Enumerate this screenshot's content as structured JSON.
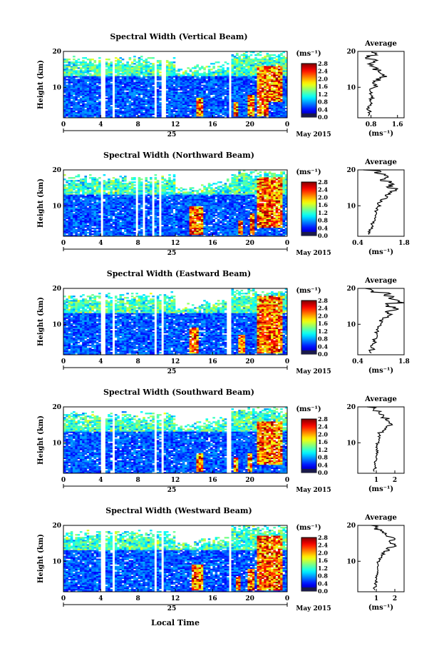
{
  "figure": {
    "xlabel": "Local Time",
    "date_label": "May 2015",
    "day_label": "25",
    "height_label": "Height (km)",
    "cbar_units": "(ms⁻¹)",
    "avg_title": "Average",
    "avg_xlabel": "(ms⁻¹)"
  },
  "chart_data": [
    {
      "type": "heatmap",
      "title": "Spectral Width (Vertical Beam)",
      "xlabel": "",
      "ylabel": "Height (km)",
      "xlim": [
        0,
        24
      ],
      "ylim": [
        1.5,
        20
      ],
      "xticks": [
        "0",
        "4",
        "8",
        "12",
        "16",
        "20",
        "0"
      ],
      "yticks": [
        "10",
        "20"
      ],
      "colorbar": {
        "range": [
          0,
          2.8
        ],
        "ticks": [
          "0.0",
          "0.4",
          "0.8",
          "1.2",
          "1.6",
          "2.0",
          "2.4",
          "2.8"
        ]
      },
      "data_gaps_hours": [
        [
          4.1,
          4.4
        ],
        [
          5.3,
          5.6
        ],
        [
          8.4,
          8.6
        ],
        [
          9.8,
          10.0
        ],
        [
          10.4,
          10.9
        ],
        [
          17.7,
          17.9
        ]
      ],
      "high_regions": [
        [
          14.3,
          15.0,
          2,
          7
        ],
        [
          18.2,
          18.8,
          2,
          6
        ],
        [
          19.7,
          20.5,
          2,
          8
        ],
        [
          20.8,
          22.0,
          2,
          16
        ],
        [
          22.0,
          23.5,
          6,
          16
        ]
      ],
      "average": {
        "xlim": [
          0.4,
          1.8
        ],
        "xticks": [
          "0.8",
          "1.6"
        ],
        "yticks": [
          "10",
          "20"
        ],
        "heights": [
          2,
          3,
          4,
          5,
          6,
          7,
          8,
          9,
          10,
          11,
          12,
          13,
          14,
          15,
          16,
          17,
          18,
          19,
          20
        ],
        "values": [
          0.7,
          0.75,
          0.72,
          0.8,
          0.78,
          0.85,
          0.8,
          0.82,
          0.95,
          0.9,
          1.05,
          1.2,
          1.1,
          0.9,
          0.8,
          0.95,
          0.7,
          0.9,
          0.75
        ]
      }
    },
    {
      "type": "heatmap",
      "title": "Spectral Width (Northward Beam)",
      "xlabel": "",
      "ylabel": "Height (km)",
      "xlim": [
        0,
        24
      ],
      "ylim": [
        1.5,
        20
      ],
      "xticks": [
        "0",
        "4",
        "8",
        "12",
        "16",
        "20",
        "0"
      ],
      "yticks": [
        "10",
        "20"
      ],
      "colorbar": {
        "range": [
          0,
          2.8
        ],
        "ticks": [
          "0.0",
          "0.4",
          "0.8",
          "1.2",
          "1.6",
          "2.0",
          "2.4",
          "2.8"
        ]
      },
      "data_gaps_hours": [
        [
          4.0,
          4.3
        ],
        [
          7.8,
          8.1
        ],
        [
          8.5,
          8.7
        ],
        [
          9.6,
          9.8
        ],
        [
          10.2,
          10.5
        ]
      ],
      "high_regions": [
        [
          13.6,
          15.0,
          2,
          10
        ],
        [
          18.7,
          19.2,
          2,
          6
        ],
        [
          20.0,
          20.4,
          2,
          8
        ],
        [
          20.8,
          23.5,
          4,
          18
        ]
      ],
      "average": {
        "xlim": [
          0.4,
          1.8
        ],
        "xticks": [
          "0.4",
          "1.8"
        ],
        "yticks": [
          "10",
          "20"
        ],
        "heights": [
          2,
          3,
          4,
          5,
          6,
          7,
          8,
          9,
          10,
          11,
          12,
          13,
          14,
          15,
          16,
          17,
          18,
          19,
          20
        ],
        "values": [
          0.75,
          0.8,
          0.82,
          0.85,
          0.9,
          0.92,
          0.95,
          1.0,
          1.05,
          1.1,
          1.2,
          1.3,
          1.5,
          1.35,
          1.4,
          1.2,
          1.3,
          1.0,
          0.5
        ]
      }
    },
    {
      "type": "heatmap",
      "title": "Spectral Width (Eastward Beam)",
      "xlabel": "",
      "ylabel": "Height (km)",
      "xlim": [
        0,
        24
      ],
      "ylim": [
        1.5,
        20
      ],
      "xticks": [
        "0",
        "4",
        "8",
        "12",
        "16",
        "20",
        "0"
      ],
      "yticks": [
        "10",
        "20"
      ],
      "colorbar": {
        "range": [
          0,
          2.8
        ],
        "ticks": [
          "0.0",
          "0.4",
          "0.8",
          "1.2",
          "1.6",
          "2.0",
          "2.4",
          "2.8"
        ]
      },
      "data_gaps_hours": [
        [
          4.1,
          4.4
        ],
        [
          5.2,
          5.5
        ],
        [
          9.8,
          10.1
        ],
        [
          10.5,
          10.8
        ],
        [
          17.6,
          17.9
        ]
      ],
      "high_regions": [
        [
          13.6,
          14.6,
          2,
          9
        ],
        [
          18.7,
          19.4,
          2,
          7
        ],
        [
          20.7,
          23.5,
          2,
          18
        ]
      ],
      "average": {
        "xlim": [
          0.4,
          1.8
        ],
        "xticks": [
          "0.4",
          "1.8"
        ],
        "yticks": [
          "10",
          "20"
        ],
        "heights": [
          2,
          3,
          4,
          5,
          6,
          7,
          8,
          9,
          10,
          11,
          12,
          13,
          14,
          15,
          16,
          17,
          18,
          19,
          20
        ],
        "values": [
          0.8,
          0.85,
          0.85,
          0.9,
          0.95,
          0.95,
          1.0,
          1.05,
          1.15,
          1.1,
          1.35,
          1.3,
          1.6,
          1.3,
          1.7,
          1.4,
          1.3,
          0.9,
          0.6
        ]
      }
    },
    {
      "type": "heatmap",
      "title": "Spectral Width (Southward Beam)",
      "xlabel": "",
      "ylabel": "Height (km)",
      "xlim": [
        0,
        24
      ],
      "ylim": [
        1.5,
        20
      ],
      "xticks": [
        "0",
        "4",
        "8",
        "12",
        "16",
        "20",
        "0"
      ],
      "yticks": [
        "10",
        "20"
      ],
      "colorbar": {
        "range": [
          0,
          2.8
        ],
        "ticks": [
          "0.0",
          "0.4",
          "0.8",
          "1.2",
          "1.6",
          "2.0",
          "2.4",
          "2.8"
        ]
      },
      "data_gaps_hours": [
        [
          4.1,
          4.4
        ],
        [
          5.3,
          5.6
        ],
        [
          9.8,
          10.0
        ],
        [
          10.5,
          10.8
        ],
        [
          17.6,
          17.9
        ]
      ],
      "high_regions": [
        [
          14.3,
          15.0,
          2,
          7
        ],
        [
          18.3,
          18.8,
          2,
          6
        ],
        [
          19.8,
          20.3,
          2,
          7
        ],
        [
          20.8,
          23.5,
          4,
          16
        ]
      ],
      "average": {
        "xlim": [
          0,
          2.5
        ],
        "xticks": [
          "1",
          "2"
        ],
        "yticks": [
          "10",
          "20"
        ],
        "heights": [
          2,
          3,
          4,
          5,
          6,
          7,
          8,
          9,
          10,
          11,
          12,
          13,
          14,
          15,
          16,
          17,
          18,
          19,
          20
        ],
        "values": [
          0.9,
          0.95,
          0.95,
          1.0,
          1.0,
          1.05,
          1.0,
          1.05,
          1.1,
          1.15,
          1.2,
          1.4,
          1.5,
          1.8,
          1.6,
          1.3,
          1.2,
          0.9,
          0.6
        ]
      }
    },
    {
      "type": "heatmap",
      "title": "Spectral Width (Westward Beam)",
      "xlabel": "Local Time",
      "ylabel": "Height (km)",
      "xlim": [
        0,
        24
      ],
      "ylim": [
        1.5,
        20
      ],
      "xticks": [
        "0",
        "4",
        "8",
        "12",
        "16",
        "20",
        "0"
      ],
      "yticks": [
        "10",
        "20"
      ],
      "colorbar": {
        "range": [
          0,
          2.8
        ],
        "ticks": [
          "0.0",
          "0.4",
          "0.8",
          "1.2",
          "1.6",
          "2.0",
          "2.4",
          "2.8"
        ]
      },
      "data_gaps_hours": [
        [
          4.1,
          4.4
        ],
        [
          5.3,
          5.6
        ],
        [
          9.8,
          10.1
        ],
        [
          10.4,
          10.7
        ],
        [
          17.7,
          17.9
        ]
      ],
      "high_regions": [
        [
          13.8,
          15.0,
          2,
          9
        ],
        [
          18.5,
          19.0,
          2,
          6
        ],
        [
          19.8,
          20.4,
          2,
          8
        ],
        [
          20.7,
          23.5,
          2,
          17
        ]
      ],
      "average": {
        "xlim": [
          0,
          2.5
        ],
        "xticks": [
          "1",
          "2"
        ],
        "yticks": [
          "10",
          "20"
        ],
        "heights": [
          2,
          3,
          4,
          5,
          6,
          7,
          8,
          9,
          10,
          11,
          12,
          13,
          14,
          15,
          16,
          17,
          18,
          19,
          20
        ],
        "values": [
          0.9,
          0.95,
          1.0,
          1.0,
          1.05,
          1.05,
          1.1,
          1.1,
          1.2,
          1.3,
          1.4,
          1.6,
          2.0,
          1.7,
          1.9,
          1.5,
          1.3,
          1.0,
          0.7
        ]
      }
    }
  ]
}
